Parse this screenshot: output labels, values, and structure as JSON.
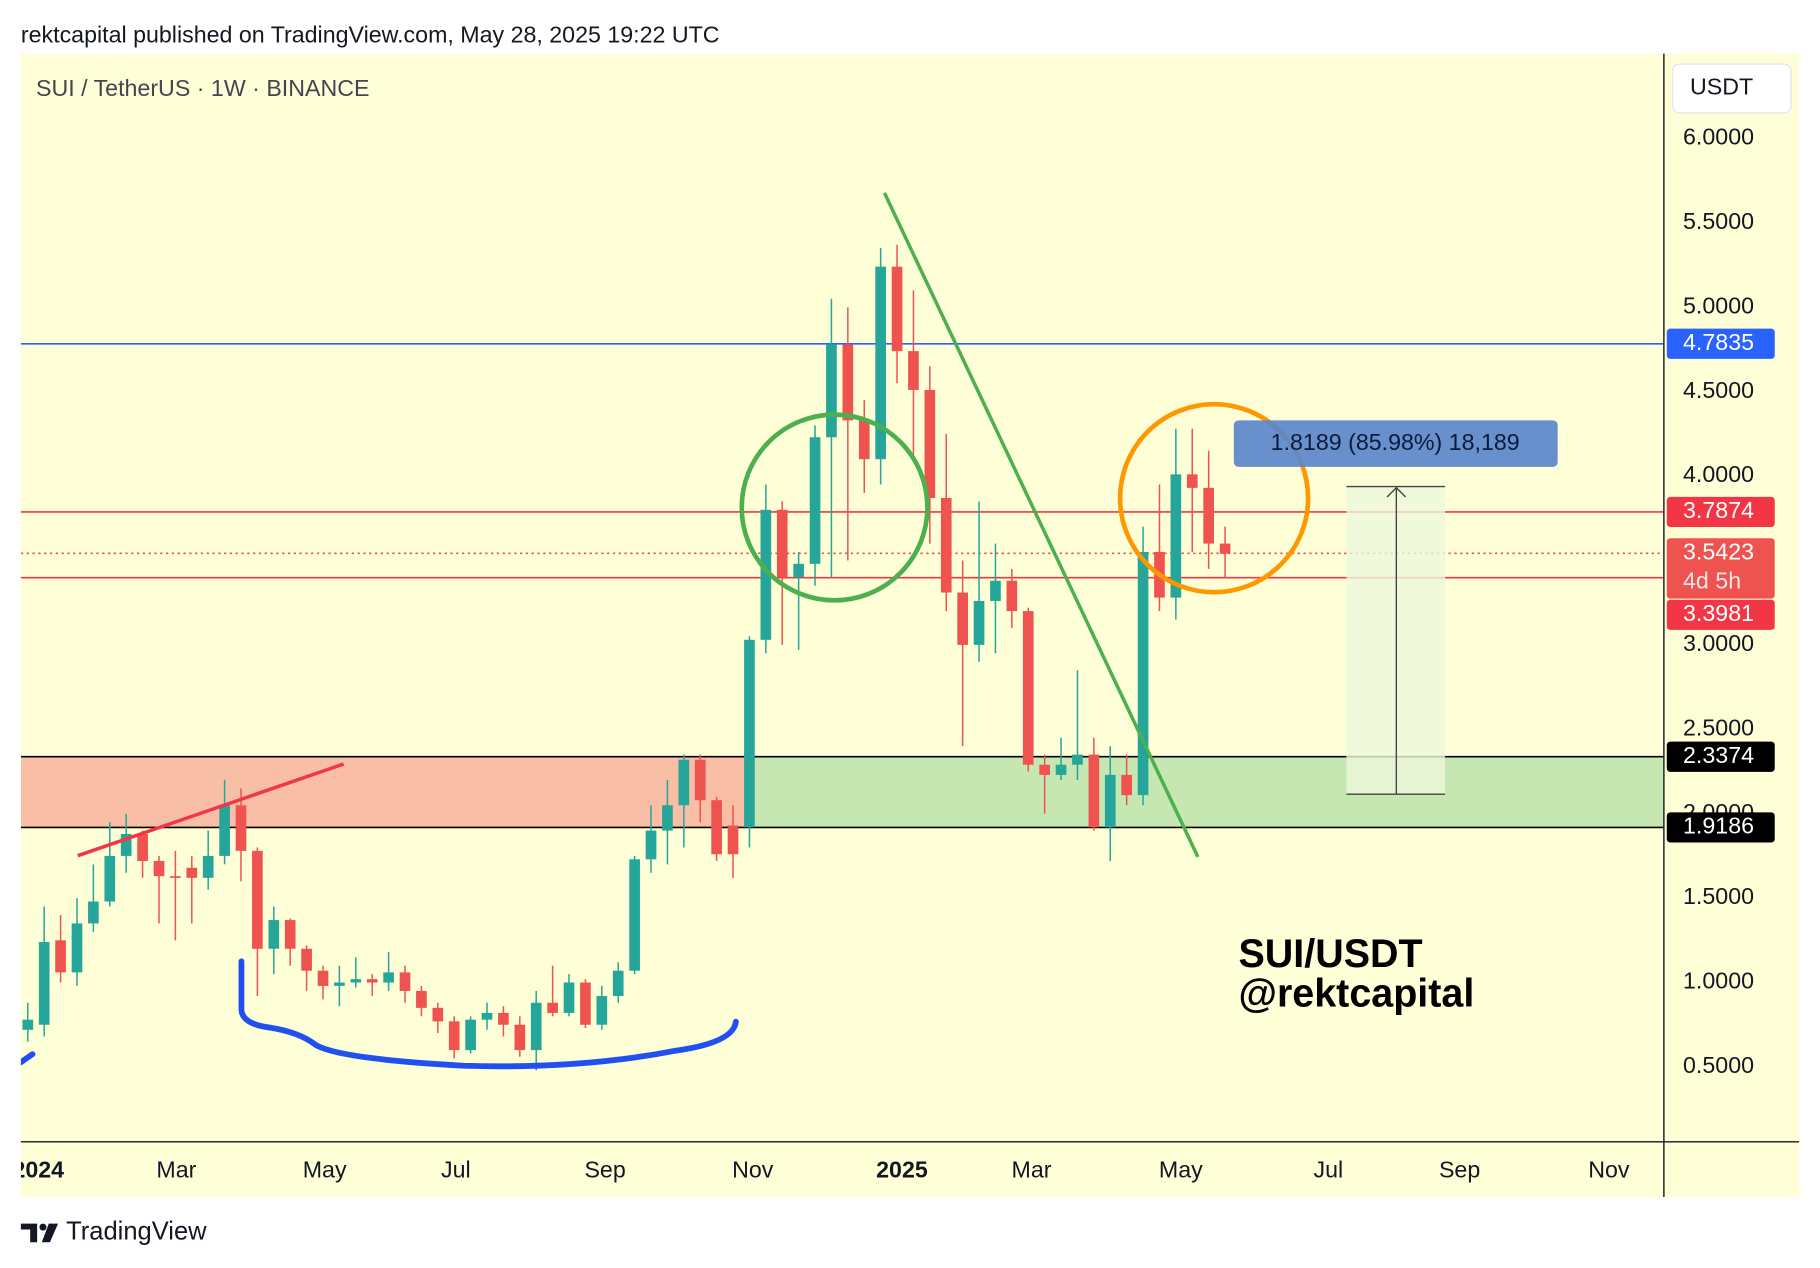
{
  "header": {
    "publisher": "rektcapital published on TradingView.com, May 28, 2025 19:22 UTC"
  },
  "footer": {
    "brand": "TradingView"
  },
  "chart_data": {
    "type": "candlestick",
    "symbol": "SUI / TetherUS · 1W · BINANCE",
    "currency": "USDT",
    "up_color": "#26a69a",
    "down_color": "#ef5350",
    "xlim": [
      -0.42,
      99.72
    ],
    "xticks": [
      {
        "value": 0.64,
        "label": "2024"
      },
      {
        "value": 9.06,
        "label": "Mar"
      },
      {
        "value": 18.1,
        "label": "May"
      },
      {
        "value": 26.1,
        "label": "Jul"
      },
      {
        "value": 35.2,
        "label": "Sep"
      },
      {
        "value": 44.2,
        "label": "Nov"
      },
      {
        "value": 53.3,
        "label": "2025"
      },
      {
        "value": 61.2,
        "label": "Mar"
      },
      {
        "value": 70.3,
        "label": "May"
      },
      {
        "value": 79.3,
        "label": "Jul"
      },
      {
        "value": 87.3,
        "label": "Sep"
      },
      {
        "value": 96.4,
        "label": "Nov"
      }
    ],
    "ylim": [
      0.06,
      6.502
    ],
    "yticks": [
      {
        "value": 6,
        "label": "6.0000"
      },
      {
        "value": 5.5,
        "label": "5.5000"
      },
      {
        "value": 5,
        "label": "5.0000"
      },
      {
        "value": 4.5,
        "label": "4.5000"
      },
      {
        "value": 4,
        "label": "4.0000"
      },
      {
        "value": 3.5,
        "label": "3.5000"
      },
      {
        "value": 3,
        "label": "3.0000"
      },
      {
        "value": 2.5,
        "label": "2.5000"
      },
      {
        "value": 2,
        "label": "2.0000"
      },
      {
        "value": 1.5,
        "label": "1.5000"
      },
      {
        "value": 1,
        "label": "1.0000"
      },
      {
        "value": 0.5,
        "label": "0.5000"
      }
    ],
    "price_lines": [
      {
        "value": 4.7835,
        "color": "#2962ff",
        "text_color": "#ffffff",
        "style": "solid"
      },
      {
        "value": 3.7874,
        "color": "#f23645",
        "text_color": "#ffffff",
        "style": "solid"
      },
      {
        "value": 3.5423,
        "color": "#ef5350",
        "text_color": "#ffffff",
        "style": "dotted",
        "countdown": "4d 5h"
      },
      {
        "value": 3.3981,
        "color": "#f23645",
        "text_color": "#ffffff",
        "style": "solid"
      },
      {
        "value": 2.3374,
        "color": "#000000",
        "text_color": "#ffffff",
        "style": "solid"
      },
      {
        "value": 1.9186,
        "color": "#000000",
        "text_color": "#ffffff",
        "style": "solid"
      }
    ],
    "zones": [
      {
        "from_line": 4,
        "to_line": 5,
        "color": "#f9bfa6",
        "start": -0.42,
        "end": 43.7
      },
      {
        "from_line": 4,
        "to_line": 5,
        "color": "#c6e6b2",
        "start": 43.7,
        "end": 99.72
      }
    ],
    "measure_label": "1.8189 (85.98%) 18,189",
    "annotation": [
      "SUI/USDT",
      "@rektcapital"
    ],
    "candles": [
      {
        "open": 0.72,
        "high": 0.88,
        "low": 0.65,
        "close": 0.78
      },
      {
        "open": 0.75,
        "high": 1.45,
        "low": 0.68,
        "close": 1.24
      },
      {
        "open": 1.25,
        "high": 1.4,
        "low": 1.0,
        "close": 1.06
      },
      {
        "open": 1.06,
        "high": 1.5,
        "low": 0.98,
        "close": 1.35
      },
      {
        "open": 1.35,
        "high": 1.7,
        "low": 1.3,
        "close": 1.48
      },
      {
        "open": 1.48,
        "high": 1.95,
        "low": 1.45,
        "close": 1.75
      },
      {
        "open": 1.75,
        "high": 2.0,
        "low": 1.65,
        "close": 1.88
      },
      {
        "open": 1.88,
        "high": 1.9,
        "low": 1.62,
        "close": 1.72
      },
      {
        "open": 1.72,
        "high": 1.75,
        "low": 1.35,
        "close": 1.63
      },
      {
        "open": 1.63,
        "high": 1.78,
        "low": 1.25,
        "close": 1.62
      },
      {
        "open": 1.68,
        "high": 1.75,
        "low": 1.35,
        "close": 1.62
      },
      {
        "open": 1.62,
        "high": 1.9,
        "low": 1.55,
        "close": 1.75
      },
      {
        "open": 1.75,
        "high": 2.2,
        "low": 1.7,
        "close": 2.05
      },
      {
        "open": 2.05,
        "high": 2.15,
        "low": 1.6,
        "close": 1.78
      },
      {
        "open": 1.78,
        "high": 1.8,
        "low": 0.92,
        "close": 1.2
      },
      {
        "open": 1.2,
        "high": 1.45,
        "low": 1.05,
        "close": 1.37
      },
      {
        "open": 1.37,
        "high": 1.38,
        "low": 1.1,
        "close": 1.2
      },
      {
        "open": 1.2,
        "high": 1.22,
        "low": 0.95,
        "close": 1.07
      },
      {
        "open": 1.07,
        "high": 1.1,
        "low": 0.9,
        "close": 0.98
      },
      {
        "open": 0.98,
        "high": 1.1,
        "low": 0.86,
        "close": 1.0
      },
      {
        "open": 1.0,
        "high": 1.15,
        "low": 0.97,
        "close": 1.02
      },
      {
        "open": 1.02,
        "high": 1.05,
        "low": 0.92,
        "close": 1.0
      },
      {
        "open": 1.0,
        "high": 1.18,
        "low": 0.95,
        "close": 1.06
      },
      {
        "open": 1.06,
        "high": 1.1,
        "low": 0.88,
        "close": 0.95
      },
      {
        "open": 0.95,
        "high": 0.98,
        "low": 0.8,
        "close": 0.85
      },
      {
        "open": 0.85,
        "high": 0.88,
        "low": 0.7,
        "close": 0.77
      },
      {
        "open": 0.77,
        "high": 0.8,
        "low": 0.55,
        "close": 0.6
      },
      {
        "open": 0.6,
        "high": 0.8,
        "low": 0.58,
        "close": 0.78
      },
      {
        "open": 0.78,
        "high": 0.88,
        "low": 0.72,
        "close": 0.82
      },
      {
        "open": 0.82,
        "high": 0.86,
        "low": 0.68,
        "close": 0.75
      },
      {
        "open": 0.75,
        "high": 0.8,
        "low": 0.56,
        "close": 0.6
      },
      {
        "open": 0.6,
        "high": 0.95,
        "low": 0.48,
        "close": 0.88
      },
      {
        "open": 0.88,
        "high": 1.1,
        "low": 0.8,
        "close": 0.82
      },
      {
        "open": 0.82,
        "high": 1.05,
        "low": 0.8,
        "close": 1.0
      },
      {
        "open": 1.0,
        "high": 1.02,
        "low": 0.73,
        "close": 0.75
      },
      {
        "open": 0.75,
        "high": 0.98,
        "low": 0.72,
        "close": 0.92
      },
      {
        "open": 0.92,
        "high": 1.12,
        "low": 0.88,
        "close": 1.07
      },
      {
        "open": 1.07,
        "high": 1.75,
        "low": 1.05,
        "close": 1.73
      },
      {
        "open": 1.73,
        "high": 2.05,
        "low": 1.65,
        "close": 1.9
      },
      {
        "open": 1.9,
        "high": 2.2,
        "low": 1.7,
        "close": 2.05
      },
      {
        "open": 2.05,
        "high": 2.35,
        "low": 1.8,
        "close": 2.32
      },
      {
        "open": 2.32,
        "high": 2.35,
        "low": 1.95,
        "close": 2.08
      },
      {
        "open": 2.08,
        "high": 2.1,
        "low": 1.72,
        "close": 1.76
      },
      {
        "open": 1.93,
        "high": 2.05,
        "low": 1.62,
        "close": 1.76
      },
      {
        "open": 1.92,
        "high": 3.05,
        "low": 1.8,
        "close": 3.03
      },
      {
        "open": 3.03,
        "high": 3.95,
        "low": 2.95,
        "close": 3.8
      },
      {
        "open": 3.8,
        "high": 3.85,
        "low": 3.0,
        "close": 3.4
      },
      {
        "open": 3.4,
        "high": 3.55,
        "low": 2.97,
        "close": 3.48
      },
      {
        "open": 3.48,
        "high": 4.3,
        "low": 3.35,
        "close": 4.23
      },
      {
        "open": 4.23,
        "high": 5.05,
        "low": 3.4,
        "close": 4.78
      },
      {
        "open": 4.78,
        "high": 5.0,
        "low": 3.5,
        "close": 4.33
      },
      {
        "open": 4.33,
        "high": 4.45,
        "low": 3.9,
        "close": 4.1
      },
      {
        "open": 4.1,
        "high": 5.35,
        "low": 3.95,
        "close": 5.24
      },
      {
        "open": 5.24,
        "high": 5.37,
        "low": 4.55,
        "close": 4.74
      },
      {
        "open": 4.74,
        "high": 5.1,
        "low": 4.1,
        "close": 4.51
      },
      {
        "open": 4.51,
        "high": 4.65,
        "low": 3.6,
        "close": 3.87
      },
      {
        "open": 3.87,
        "high": 4.25,
        "low": 3.2,
        "close": 3.31
      },
      {
        "open": 3.31,
        "high": 3.5,
        "low": 2.4,
        "close": 3.0
      },
      {
        "open": 3.0,
        "high": 3.85,
        "low": 2.9,
        "close": 3.26
      },
      {
        "open": 3.26,
        "high": 3.6,
        "low": 2.95,
        "close": 3.38
      },
      {
        "open": 3.38,
        "high": 3.45,
        "low": 3.1,
        "close": 3.2
      },
      {
        "open": 3.2,
        "high": 3.22,
        "low": 2.25,
        "close": 2.29
      },
      {
        "open": 2.29,
        "high": 2.35,
        "low": 2.0,
        "close": 2.23
      },
      {
        "open": 2.23,
        "high": 2.45,
        "low": 2.2,
        "close": 2.29
      },
      {
        "open": 2.29,
        "high": 2.85,
        "low": 2.2,
        "close": 2.35
      },
      {
        "open": 2.35,
        "high": 2.45,
        "low": 1.9,
        "close": 1.92
      },
      {
        "open": 1.92,
        "high": 2.4,
        "low": 1.72,
        "close": 2.23
      },
      {
        "open": 2.23,
        "high": 2.35,
        "low": 2.05,
        "close": 2.11
      },
      {
        "open": 2.11,
        "high": 3.7,
        "low": 2.05,
        "close": 3.55
      },
      {
        "open": 3.55,
        "high": 3.95,
        "low": 3.2,
        "close": 3.28
      },
      {
        "open": 3.28,
        "high": 4.28,
        "low": 3.15,
        "close": 4.01
      },
      {
        "open": 4.01,
        "high": 4.28,
        "low": 3.55,
        "close": 3.93
      },
      {
        "open": 3.93,
        "high": 4.15,
        "low": 3.45,
        "close": 3.6
      },
      {
        "open": 3.6,
        "high": 3.7,
        "low": 3.4,
        "close": 3.54
      }
    ]
  }
}
